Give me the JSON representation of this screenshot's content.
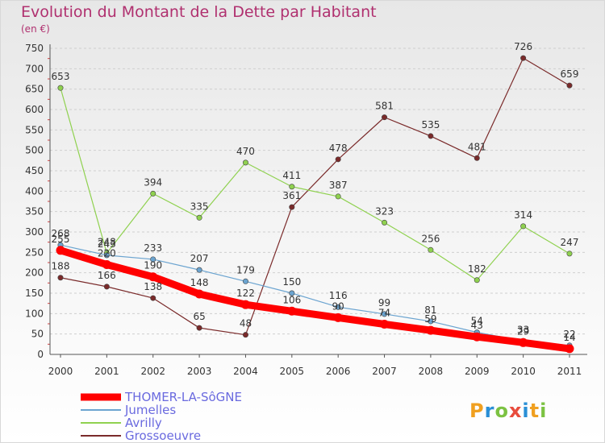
{
  "title": "Evolution du Montant de la Dette par Habitant",
  "subtitle": "(en €)",
  "logo": "Proxiti",
  "chart_data": {
    "type": "line",
    "categories": [
      "2000",
      "2001",
      "2002",
      "2003",
      "2004",
      "2005",
      "2006",
      "2007",
      "2008",
      "2009",
      "2010",
      "2011"
    ],
    "ylim": [
      0,
      750
    ],
    "yticks": [
      0,
      50,
      100,
      150,
      200,
      250,
      300,
      350,
      400,
      450,
      500,
      550,
      600,
      650,
      700,
      750
    ],
    "grid": "horizontal",
    "legend_position": "bottom-left",
    "series": [
      {
        "name": "THOMER-LA-SôGNE",
        "color": "#ff0000",
        "values": [
          255,
          220,
          190,
          148,
          122,
          106,
          90,
          74,
          59,
          43,
          29,
          14
        ]
      },
      {
        "name": "Jumelles",
        "color": "#6ba4d0",
        "values": [
          268,
          243,
          233,
          207,
          179,
          150,
          116,
          99,
          81,
          54,
          33,
          22
        ]
      },
      {
        "name": "Avrilly",
        "color": "#8fd14f",
        "values": [
          653,
          248,
          394,
          335,
          470,
          411,
          387,
          323,
          256,
          182,
          314,
          247
        ]
      },
      {
        "name": "Grossoeuvre",
        "color": "#7a2a2a",
        "values": [
          188,
          166,
          138,
          65,
          48,
          361,
          478,
          581,
          535,
          481,
          726,
          659
        ]
      }
    ]
  }
}
